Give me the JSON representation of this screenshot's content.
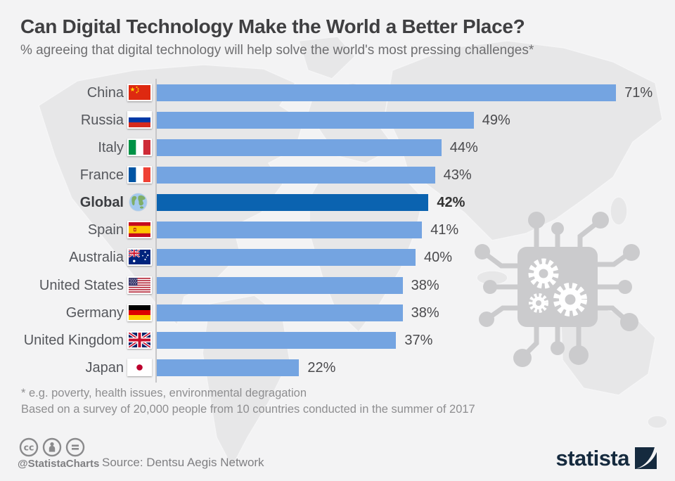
{
  "header": {
    "title": "Can Digital Technology Make the World a Better Place?",
    "subtitle": "% agreeing that digital technology will help solve the world's most pressing challenges*"
  },
  "chart_data": {
    "type": "bar",
    "orientation": "horizontal",
    "unit": "%",
    "xlim": [
      0,
      100
    ],
    "grid": false,
    "legend": false,
    "categories": [
      "China",
      "Russia",
      "Italy",
      "France",
      "Global",
      "Spain",
      "Australia",
      "United States",
      "Germany",
      "United Kingdom",
      "Japan"
    ],
    "values": [
      71,
      49,
      44,
      43,
      42,
      41,
      40,
      38,
      38,
      37,
      22
    ],
    "highlight_category": "Global",
    "colors": {
      "bar": "#74a4e1",
      "highlight_bar": "#0b63b0"
    },
    "rows": [
      {
        "label": "China",
        "flag": "china",
        "value": 71,
        "display": "71%",
        "highlight": false
      },
      {
        "label": "Russia",
        "flag": "russia",
        "value": 49,
        "display": "49%",
        "highlight": false
      },
      {
        "label": "Italy",
        "flag": "italy",
        "value": 44,
        "display": "44%",
        "highlight": false
      },
      {
        "label": "France",
        "flag": "france",
        "value": 43,
        "display": "43%",
        "highlight": false
      },
      {
        "label": "Global",
        "flag": "global",
        "value": 42,
        "display": "42%",
        "highlight": true
      },
      {
        "label": "Spain",
        "flag": "spain",
        "value": 41,
        "display": "41%",
        "highlight": false
      },
      {
        "label": "Australia",
        "flag": "australia",
        "value": 40,
        "display": "40%",
        "highlight": false
      },
      {
        "label": "United States",
        "flag": "us",
        "value": 38,
        "display": "38%",
        "highlight": false
      },
      {
        "label": "Germany",
        "flag": "germany",
        "value": 38,
        "display": "38%",
        "highlight": false
      },
      {
        "label": "United Kingdom",
        "flag": "uk",
        "value": 37,
        "display": "37%",
        "highlight": false
      },
      {
        "label": "Japan",
        "flag": "japan",
        "value": 22,
        "display": "22%",
        "highlight": false
      }
    ]
  },
  "footnotes": [
    "* e.g. poverty, health issues, environmental degragation",
    "Based on a survey of 20,000 people from 10 countries conducted in the summer of 2017"
  ],
  "footer": {
    "handle": "@StatistaCharts",
    "source": "Source: Dentsu Aegis Network",
    "license_icons": [
      "cc-icon",
      "attribution-person-icon",
      "equals-icon"
    ],
    "logo_text": "statista",
    "logo_color": "#152a3e"
  }
}
